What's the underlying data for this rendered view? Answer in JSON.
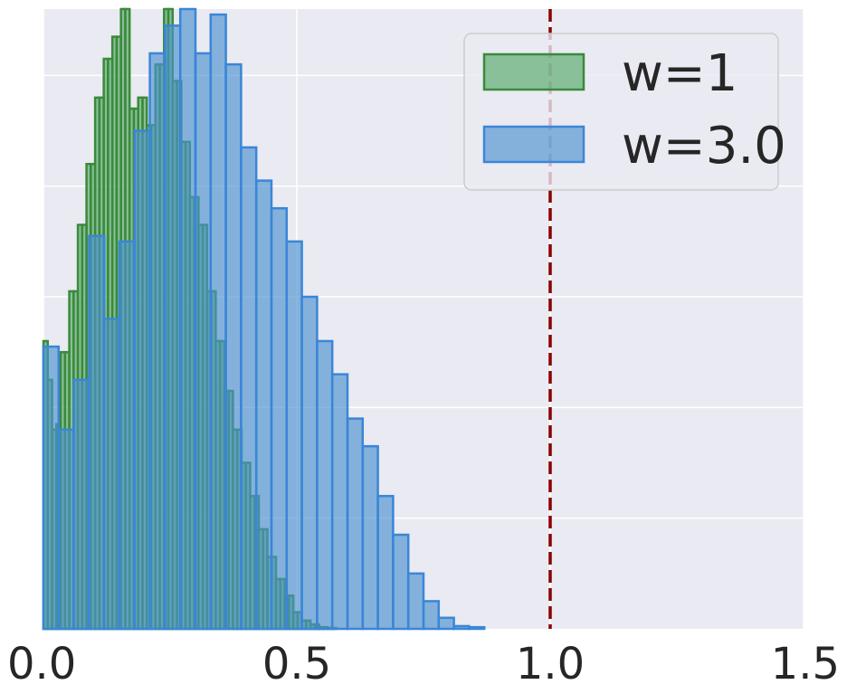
{
  "chart_data": {
    "type": "bar",
    "subtype": "histogram",
    "title": "",
    "xlabel": "",
    "ylabel": "",
    "xlim": [
      0.0,
      1.5
    ],
    "ylim": [
      0,
      1.12
    ],
    "xticks": [
      0.0,
      0.5,
      1.0,
      1.5
    ],
    "xtick_labels": [
      "0.0",
      "0.5",
      "1.0",
      "1.5"
    ],
    "y_tick_labels_shown": false,
    "gridlines_y": [
      0.2,
      0.4,
      0.6,
      0.8,
      1.0
    ],
    "grid": true,
    "legend_placement": "top-right",
    "reference_line": {
      "x": 1.0,
      "style": "dashed",
      "color": "#8b0000"
    },
    "series": [
      {
        "name": "w=1",
        "color": "#55a868",
        "edge_color": "#3a8a3a",
        "bin_width": 0.0085,
        "x_start": 0.0,
        "values": [
          0.52,
          0.45,
          0.36,
          0.37,
          0.5,
          0.5,
          0.61,
          0.61,
          0.73,
          0.73,
          0.84,
          0.84,
          0.96,
          0.96,
          1.03,
          1.03,
          1.07,
          1.07,
          1.12,
          1.12,
          0.94,
          0.94,
          0.96,
          0.96,
          0.91,
          0.91,
          1.02,
          1.02,
          1.12,
          1.12,
          0.99,
          0.99,
          0.88,
          0.88,
          0.78,
          0.78,
          0.73,
          0.73,
          0.61,
          0.61,
          0.52,
          0.52,
          0.43,
          0.43,
          0.36,
          0.36,
          0.3,
          0.3,
          0.24,
          0.24,
          0.18,
          0.18,
          0.13,
          0.13,
          0.09,
          0.09,
          0.06,
          0.06,
          0.03,
          0.03,
          0.015,
          0.015,
          0.008,
          0.008,
          0.003,
          0.003,
          0.0015,
          0.0015
        ]
      },
      {
        "name": "w=3.0",
        "color": "#4c92d0",
        "edge_color": "#3a86d8",
        "bin_width": 0.03,
        "x_start": 0.0,
        "values": [
          0.51,
          0.36,
          0.45,
          0.71,
          0.56,
          0.7,
          0.9,
          1.04,
          1.09,
          1.12,
          1.04,
          1.11,
          1.02,
          0.87,
          0.81,
          0.76,
          0.7,
          0.6,
          0.52,
          0.46,
          0.38,
          0.33,
          0.24,
          0.17,
          0.1,
          0.05,
          0.02,
          0.005,
          0.003
        ]
      }
    ]
  }
}
